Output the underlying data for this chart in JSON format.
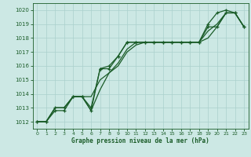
{
  "title": "Graphe pression niveau de la mer (hPa)",
  "xlim": [
    -0.5,
    23.5
  ],
  "ylim": [
    1011.5,
    1020.5
  ],
  "yticks": [
    1012,
    1013,
    1014,
    1015,
    1016,
    1017,
    1018,
    1019,
    1020
  ],
  "xticks": [
    0,
    1,
    2,
    3,
    4,
    5,
    6,
    7,
    8,
    9,
    10,
    11,
    12,
    13,
    14,
    15,
    16,
    17,
    18,
    19,
    20,
    21,
    22,
    23
  ],
  "bg_color": "#cce8e4",
  "grid_color": "#aad0cc",
  "line_color": "#1a5c28",
  "line1_marked": {
    "x": [
      0,
      1,
      2,
      3,
      4,
      5,
      6,
      7,
      8,
      9,
      10,
      11,
      12,
      13,
      14,
      15,
      16,
      17,
      18,
      19,
      20,
      21,
      22,
      23
    ],
    "y": [
      1012.0,
      1012.0,
      1012.8,
      1012.8,
      1013.8,
      1013.8,
      1012.8,
      1015.8,
      1015.8,
      1016.7,
      1017.7,
      1017.7,
      1017.7,
      1017.7,
      1017.7,
      1017.7,
      1017.7,
      1017.7,
      1017.7,
      1018.8,
      1018.8,
      1019.8,
      1019.8,
      1018.8
    ]
  },
  "line2_marked": {
    "x": [
      0,
      1,
      2,
      3,
      4,
      5,
      6,
      7,
      8,
      9,
      10,
      11,
      12,
      13,
      14,
      15,
      16,
      17,
      18,
      19,
      20,
      21,
      22,
      23
    ],
    "y": [
      1012.0,
      1012.0,
      1013.0,
      1013.0,
      1013.8,
      1013.8,
      1013.0,
      1015.8,
      1016.0,
      1016.7,
      1017.7,
      1017.7,
      1017.7,
      1017.7,
      1017.7,
      1017.7,
      1017.7,
      1017.7,
      1017.7,
      1019.0,
      1019.8,
      1020.0,
      1019.8,
      1018.8
    ]
  },
  "line3_plain": {
    "x": [
      0,
      1,
      2,
      3,
      4,
      5,
      6,
      7,
      8,
      9,
      10,
      11,
      12,
      13,
      14,
      15,
      16,
      17,
      18,
      19,
      20,
      21,
      22,
      23
    ],
    "y": [
      1012.0,
      1012.0,
      1013.0,
      1013.0,
      1013.8,
      1013.8,
      1013.8,
      1015.0,
      1015.5,
      1016.0,
      1017.0,
      1017.5,
      1017.7,
      1017.7,
      1017.7,
      1017.7,
      1017.7,
      1017.7,
      1017.7,
      1018.5,
      1019.0,
      1019.8,
      1019.8,
      1018.8
    ]
  },
  "line4_plain": {
    "x": [
      0,
      1,
      2,
      3,
      4,
      5,
      6,
      7,
      8,
      9,
      10,
      11,
      12,
      13,
      14,
      15,
      16,
      17,
      18,
      19,
      20,
      21,
      22,
      23
    ],
    "y": [
      1012.0,
      1012.0,
      1013.0,
      1013.0,
      1013.8,
      1013.8,
      1012.8,
      1014.3,
      1015.5,
      1016.2,
      1017.2,
      1017.7,
      1017.7,
      1017.7,
      1017.7,
      1017.7,
      1017.7,
      1017.7,
      1017.7,
      1018.0,
      1018.8,
      1019.8,
      1019.8,
      1018.8
    ]
  }
}
